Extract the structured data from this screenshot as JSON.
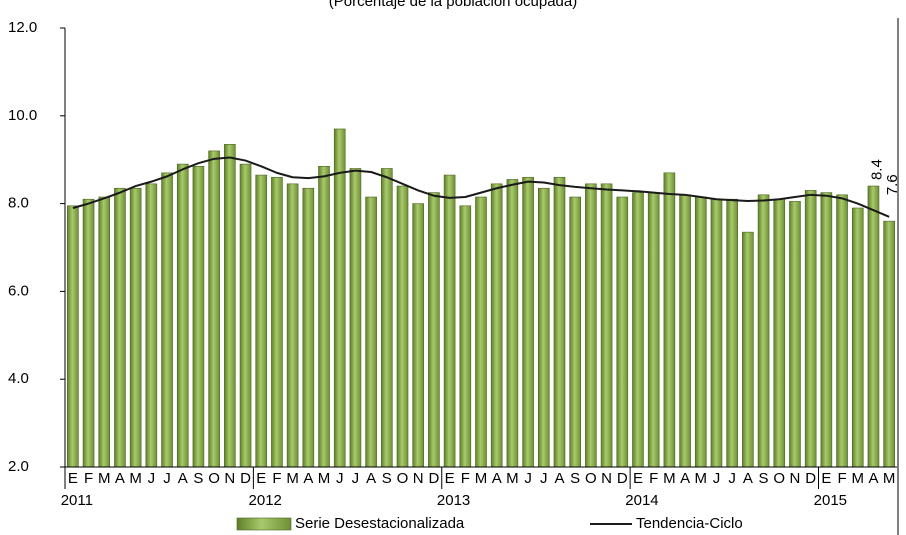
{
  "chart_data": {
    "type": "bar-line",
    "subtitle": "(Porcentaje de la población ocupada)",
    "categories": [
      "E",
      "F",
      "M",
      "A",
      "M",
      "J",
      "J",
      "A",
      "S",
      "O",
      "N",
      "D",
      "E",
      "F",
      "M",
      "A",
      "M",
      "J",
      "J",
      "A",
      "S",
      "O",
      "N",
      "D",
      "E",
      "F",
      "M",
      "A",
      "M",
      "J",
      "J",
      "A",
      "S",
      "O",
      "N",
      "D",
      "E",
      "F",
      "M",
      "A",
      "M",
      "J",
      "J",
      "A",
      "S",
      "O",
      "N",
      "D",
      "E",
      "F",
      "M",
      "A",
      "M"
    ],
    "year_labels": [
      "2011",
      "2012",
      "2013",
      "2014",
      "2015"
    ],
    "series": [
      {
        "name": "Serie Desestacionalizada",
        "kind": "bar",
        "color": "#8db050",
        "values": [
          7.95,
          8.1,
          8.15,
          8.35,
          8.35,
          8.45,
          8.7,
          8.9,
          8.85,
          9.2,
          9.35,
          8.9,
          8.65,
          8.6,
          8.45,
          8.35,
          8.85,
          9.7,
          8.8,
          8.15,
          8.8,
          8.4,
          8.0,
          8.25,
          8.65,
          7.95,
          8.15,
          8.45,
          8.55,
          8.6,
          8.35,
          8.6,
          8.15,
          8.45,
          8.45,
          8.15,
          8.25,
          8.25,
          8.7,
          8.2,
          8.15,
          8.1,
          8.1,
          7.35,
          8.2,
          8.1,
          8.05,
          8.3,
          8.25,
          8.2,
          7.9,
          8.4,
          7.6
        ],
        "value_labels": [
          null,
          null,
          null,
          null,
          null,
          null,
          null,
          null,
          null,
          null,
          null,
          null,
          null,
          null,
          null,
          null,
          null,
          null,
          null,
          null,
          null,
          null,
          null,
          null,
          null,
          null,
          null,
          null,
          null,
          null,
          null,
          null,
          null,
          null,
          null,
          null,
          null,
          null,
          null,
          null,
          null,
          null,
          null,
          null,
          null,
          null,
          null,
          null,
          null,
          null,
          null,
          "8.4",
          "7.6"
        ]
      },
      {
        "name": "Tendencia-Ciclo",
        "kind": "line",
        "color": "#1a1a1a",
        "values": [
          7.9,
          8.0,
          8.12,
          8.25,
          8.4,
          8.5,
          8.62,
          8.78,
          8.92,
          9.02,
          9.05,
          8.98,
          8.85,
          8.7,
          8.6,
          8.58,
          8.62,
          8.7,
          8.75,
          8.72,
          8.6,
          8.45,
          8.3,
          8.18,
          8.13,
          8.15,
          8.25,
          8.35,
          8.43,
          8.5,
          8.48,
          8.42,
          8.38,
          8.35,
          8.32,
          8.3,
          8.28,
          8.25,
          8.22,
          8.2,
          8.15,
          8.1,
          8.08,
          8.06,
          8.07,
          8.1,
          8.15,
          8.2,
          8.18,
          8.12,
          8.0,
          7.85,
          7.7
        ]
      }
    ],
    "ylim": [
      2,
      12
    ],
    "yticks": [
      {
        "value": 2,
        "label": "2.0"
      },
      {
        "value": 4,
        "label": "4.0"
      },
      {
        "value": 6,
        "label": "6.0"
      },
      {
        "value": 8,
        "label": "8.0"
      },
      {
        "value": 10,
        "label": "10.0"
      },
      {
        "value": 12,
        "label": "12.0"
      }
    ],
    "grid": false,
    "legend": "bottom"
  }
}
